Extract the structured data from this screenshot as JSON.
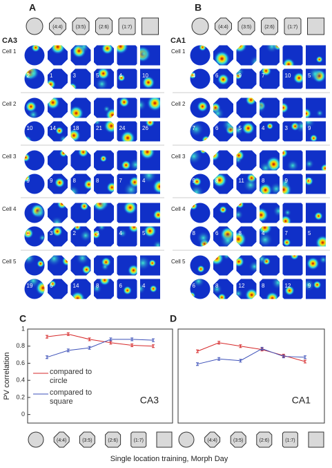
{
  "shapes": [
    "(4:4)",
    "(3:5)",
    "(2:6)",
    "(1:7)"
  ],
  "panels": [
    {
      "label": "A",
      "region": "CA3",
      "cells": [
        {
          "name": "Cell 1",
          "peaks": [
            "2",
            "1",
            "3",
            "5",
            "4",
            "10"
          ]
        },
        {
          "name": "Cell 2",
          "peaks": [
            "10",
            "14",
            "18",
            "21",
            "24",
            "26"
          ]
        },
        {
          "name": "Cell 3",
          "peaks": [
            "9",
            "9",
            "8",
            "8",
            "7",
            "4"
          ]
        },
        {
          "name": "Cell 4",
          "peaks": [
            "1",
            "3",
            "2",
            "3",
            "4",
            "5"
          ]
        },
        {
          "name": "Cell 5",
          "peaks": [
            "19",
            "6",
            "14",
            "8",
            "6",
            "4"
          ]
        }
      ]
    },
    {
      "label": "B",
      "region": "CA1",
      "cells": [
        {
          "name": "Cell 1",
          "peaks": [
            "4",
            "6",
            "9",
            "7",
            "10",
            "5"
          ]
        },
        {
          "name": "Cell 2",
          "peaks": [
            "7",
            "6",
            "5",
            "4",
            "3",
            "9"
          ]
        },
        {
          "name": "Cell 3",
          "peaks": [
            "9",
            "8",
            "11",
            "8",
            "9",
            "7"
          ]
        },
        {
          "name": "Cell 4",
          "peaks": [
            "8",
            "6",
            "8",
            "4",
            "7",
            "5"
          ]
        },
        {
          "name": "Cell 5",
          "peaks": [
            "6",
            "8",
            "12",
            "8",
            "12",
            "9"
          ]
        }
      ]
    }
  ],
  "figure_xlabel": "Single location training, Morph Day",
  "chart_data": [
    {
      "type": "line",
      "label": "C",
      "annotation": "CA3",
      "ylabel": "PV correlation",
      "categories": [
        null,
        "(4:4)",
        "(3:5)",
        "(2:6)",
        "(1:7)",
        null
      ],
      "series": [
        {
          "name": "compared to circle",
          "color": "#d62728",
          "values": [
            0.91,
            0.94,
            0.88,
            0.84,
            0.81,
            0.8
          ]
        },
        {
          "name": "compared to square",
          "color": "#3b4fb8",
          "values": [
            0.67,
            0.75,
            0.78,
            0.88,
            0.88,
            0.87
          ]
        }
      ],
      "ylim": [
        -0.1,
        1
      ],
      "yticks": [
        0,
        0.2,
        0.4,
        0.6,
        0.8,
        1
      ]
    },
    {
      "type": "line",
      "label": "D",
      "annotation": "CA1",
      "categories": [
        null,
        "(4:4)",
        "(3:5)",
        "(2:6)",
        "(1:7)",
        null
      ],
      "series": [
        {
          "name": "compared to circle",
          "color": "#d62728",
          "values": [
            0.74,
            0.84,
            0.8,
            0.76,
            0.69,
            0.62
          ]
        },
        {
          "name": "compared to square",
          "color": "#3b4fb8",
          "values": [
            0.59,
            0.65,
            0.63,
            0.77,
            0.68,
            0.67
          ]
        }
      ],
      "ylim": [
        -0.1,
        1
      ]
    }
  ]
}
